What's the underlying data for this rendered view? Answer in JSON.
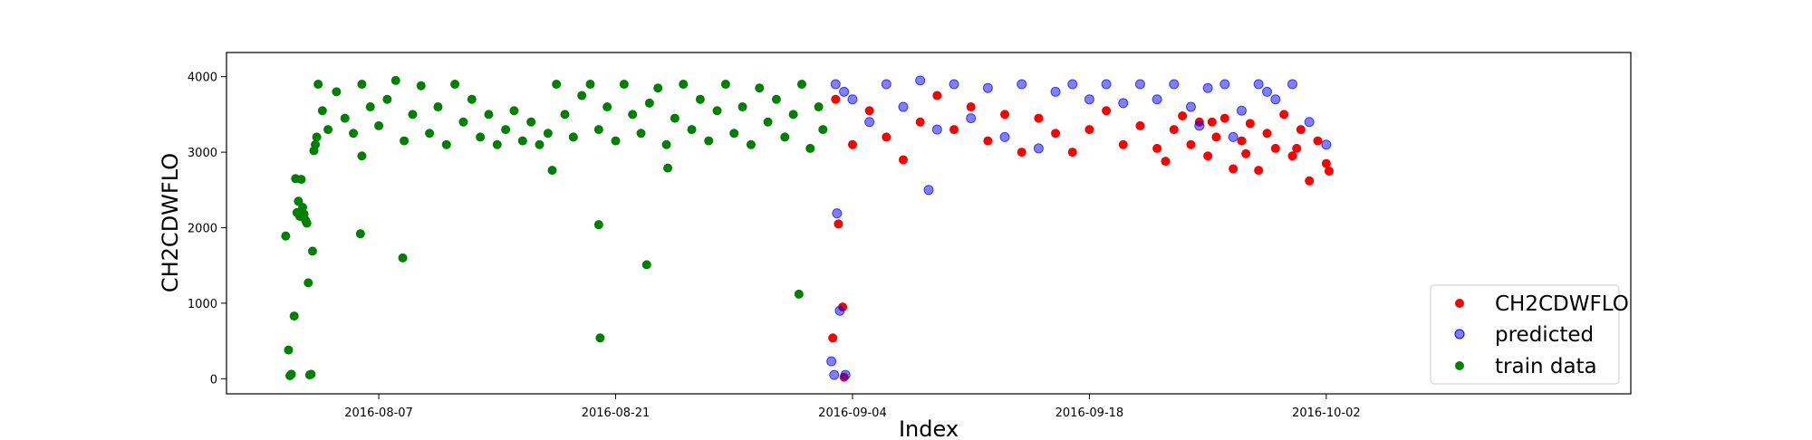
{
  "chart_data": {
    "type": "scatter",
    "title": "",
    "xlabel": "Index",
    "ylabel": "CH2CDWFLO",
    "xlim": [
      "2016-07-29",
      "2016-10-20"
    ],
    "ylim": [
      -200,
      4320
    ],
    "x_ticks": [
      "2016-08-07",
      "2016-08-21",
      "2016-09-04",
      "2016-09-18",
      "2016-10-02"
    ],
    "y_ticks": [
      0,
      1000,
      2000,
      3000,
      4000
    ],
    "legend": {
      "location": "lower-right",
      "entries": [
        "CH2CDWFLO",
        "predicted",
        "train data"
      ]
    },
    "colors": {
      "CH2CDWFLO": "#ff0000",
      "predicted": "#0000ff",
      "train data": "#008000"
    },
    "series": [
      {
        "name": "train data",
        "points": [
          [
            "2016-08-01 12:00",
            1890
          ],
          [
            "2016-08-01 16:00",
            380
          ],
          [
            "2016-08-01 18:00",
            40
          ],
          [
            "2016-08-01 20:00",
            60
          ],
          [
            "2016-08-02 00:00",
            830
          ],
          [
            "2016-08-02 02:00",
            2650
          ],
          [
            "2016-08-02 04:00",
            2200
          ],
          [
            "2016-08-02 06:00",
            2350
          ],
          [
            "2016-08-02 08:00",
            2150
          ],
          [
            "2016-08-02 10:00",
            2640
          ],
          [
            "2016-08-02 12:00",
            2270
          ],
          [
            "2016-08-02 14:00",
            2180
          ],
          [
            "2016-08-02 16:00",
            2100
          ],
          [
            "2016-08-02 18:00",
            2060
          ],
          [
            "2016-08-02 20:00",
            1270
          ],
          [
            "2016-08-02 22:00",
            50
          ],
          [
            "2016-08-03 00:00",
            60
          ],
          [
            "2016-08-03 02:00",
            1690
          ],
          [
            "2016-08-03 04:00",
            3020
          ],
          [
            "2016-08-03 06:00",
            3100
          ],
          [
            "2016-08-03 08:00",
            3200
          ],
          [
            "2016-08-03 10:00",
            3900
          ],
          [
            "2016-08-05 22:00",
            1920
          ],
          [
            "2016-08-06 00:00",
            2950
          ],
          [
            "2016-08-08 10:00",
            1600
          ],
          [
            "2016-08-20 00:00",
            2040
          ],
          [
            "2016-08-20 02:00",
            540
          ],
          [
            "2016-08-22 20:00",
            1510
          ],
          [
            "2016-08-24 02:00",
            2790
          ],
          [
            "2016-08-31 20:00",
            1120
          ],
          [
            "2016-08-17 06:00",
            2760
          ],
          [
            "2016-08-03 16:00",
            3550
          ],
          [
            "2016-08-04 00:00",
            3300
          ],
          [
            "2016-08-04 12:00",
            3800
          ],
          [
            "2016-08-05 00:00",
            3450
          ],
          [
            "2016-08-05 12:00",
            3250
          ],
          [
            "2016-08-06 00:00",
            3900
          ],
          [
            "2016-08-06 12:00",
            3600
          ],
          [
            "2016-08-07 00:00",
            3350
          ],
          [
            "2016-08-07 12:00",
            3700
          ],
          [
            "2016-08-08 00:00",
            3950
          ],
          [
            "2016-08-08 12:00",
            3150
          ],
          [
            "2016-08-09 00:00",
            3500
          ],
          [
            "2016-08-09 12:00",
            3880
          ],
          [
            "2016-08-10 00:00",
            3250
          ],
          [
            "2016-08-10 12:00",
            3600
          ],
          [
            "2016-08-11 00:00",
            3100
          ],
          [
            "2016-08-11 12:00",
            3900
          ],
          [
            "2016-08-12 00:00",
            3400
          ],
          [
            "2016-08-12 12:00",
            3700
          ],
          [
            "2016-08-13 00:00",
            3200
          ],
          [
            "2016-08-13 12:00",
            3500
          ],
          [
            "2016-08-14 00:00",
            3100
          ],
          [
            "2016-08-14 12:00",
            3300
          ],
          [
            "2016-08-15 00:00",
            3550
          ],
          [
            "2016-08-15 12:00",
            3150
          ],
          [
            "2016-08-16 00:00",
            3400
          ],
          [
            "2016-08-16 12:00",
            3100
          ],
          [
            "2016-08-17 00:00",
            3250
          ],
          [
            "2016-08-17 12:00",
            3900
          ],
          [
            "2016-08-18 00:00",
            3500
          ],
          [
            "2016-08-18 12:00",
            3200
          ],
          [
            "2016-08-19 00:00",
            3750
          ],
          [
            "2016-08-19 12:00",
            3900
          ],
          [
            "2016-08-20 00:00",
            3300
          ],
          [
            "2016-08-20 12:00",
            3600
          ],
          [
            "2016-08-21 00:00",
            3150
          ],
          [
            "2016-08-21 12:00",
            3900
          ],
          [
            "2016-08-22 00:00",
            3500
          ],
          [
            "2016-08-22 12:00",
            3250
          ],
          [
            "2016-08-23 00:00",
            3650
          ],
          [
            "2016-08-23 12:00",
            3850
          ],
          [
            "2016-08-24 00:00",
            3100
          ],
          [
            "2016-08-24 12:00",
            3450
          ],
          [
            "2016-08-25 00:00",
            3900
          ],
          [
            "2016-08-25 12:00",
            3300
          ],
          [
            "2016-08-26 00:00",
            3700
          ],
          [
            "2016-08-26 12:00",
            3150
          ],
          [
            "2016-08-27 00:00",
            3550
          ],
          [
            "2016-08-27 12:00",
            3900
          ],
          [
            "2016-08-28 00:00",
            3250
          ],
          [
            "2016-08-28 12:00",
            3600
          ],
          [
            "2016-08-29 00:00",
            3100
          ],
          [
            "2016-08-29 12:00",
            3850
          ],
          [
            "2016-08-30 00:00",
            3400
          ],
          [
            "2016-08-30 12:00",
            3700
          ],
          [
            "2016-08-31 00:00",
            3200
          ],
          [
            "2016-08-31 12:00",
            3500
          ],
          [
            "2016-09-01 00:00",
            3900
          ],
          [
            "2016-09-01 12:00",
            3050
          ],
          [
            "2016-09-02 00:00",
            3600
          ],
          [
            "2016-09-02 06:00",
            3300
          ]
        ]
      },
      {
        "name": "CH2CDWFLO",
        "points": [
          [
            "2016-09-02 20:00",
            540
          ],
          [
            "2016-09-03 04:00",
            2050
          ],
          [
            "2016-09-03 10:00",
            950
          ],
          [
            "2016-09-03 12:00",
            20
          ],
          [
            "2016-09-03 00:00",
            3700
          ],
          [
            "2016-09-04 00:00",
            3100
          ],
          [
            "2016-09-05 00:00",
            3550
          ],
          [
            "2016-09-06 00:00",
            3200
          ],
          [
            "2016-09-07 00:00",
            2900
          ],
          [
            "2016-09-08 00:00",
            3400
          ],
          [
            "2016-09-09 00:00",
            3750
          ],
          [
            "2016-09-10 00:00",
            3300
          ],
          [
            "2016-09-11 00:00",
            3600
          ],
          [
            "2016-09-12 00:00",
            3150
          ],
          [
            "2016-09-13 00:00",
            3500
          ],
          [
            "2016-09-14 00:00",
            3000
          ],
          [
            "2016-09-15 00:00",
            3450
          ],
          [
            "2016-09-16 00:00",
            3250
          ],
          [
            "2016-09-17 00:00",
            3000
          ],
          [
            "2016-09-18 00:00",
            3300
          ],
          [
            "2016-09-19 00:00",
            3550
          ],
          [
            "2016-09-20 00:00",
            3100
          ],
          [
            "2016-09-21 00:00",
            3350
          ],
          [
            "2016-09-22 00:00",
            3050
          ],
          [
            "2016-09-22 12:00",
            2880
          ],
          [
            "2016-09-23 00:00",
            3300
          ],
          [
            "2016-09-23 12:00",
            3480
          ],
          [
            "2016-09-24 00:00",
            3100
          ],
          [
            "2016-09-24 12:00",
            3400
          ],
          [
            "2016-09-25 00:00",
            2950
          ],
          [
            "2016-09-25 12:00",
            3200
          ],
          [
            "2016-09-26 00:00",
            3450
          ],
          [
            "2016-09-26 12:00",
            2780
          ],
          [
            "2016-09-27 00:00",
            3150
          ],
          [
            "2016-09-27 12:00",
            3380
          ],
          [
            "2016-09-28 00:00",
            2760
          ],
          [
            "2016-09-28 12:00",
            3250
          ],
          [
            "2016-09-29 00:00",
            3050
          ],
          [
            "2016-09-29 12:00",
            3500
          ],
          [
            "2016-09-30 00:00",
            2950
          ],
          [
            "2016-09-30 12:00",
            3300
          ],
          [
            "2016-10-01 00:00",
            2620
          ],
          [
            "2016-10-01 12:00",
            3150
          ],
          [
            "2016-10-02 00:00",
            2850
          ],
          [
            "2016-10-02 04:00",
            2750
          ],
          [
            "2016-09-25 06:00",
            3400
          ],
          [
            "2016-09-27 06:00",
            2980
          ],
          [
            "2016-09-30 06:00",
            3050
          ]
        ]
      },
      {
        "name": "predicted",
        "points": [
          [
            "2016-09-02 18:00",
            230
          ],
          [
            "2016-09-03 02:00",
            2190
          ],
          [
            "2016-09-03 06:00",
            900
          ],
          [
            "2016-09-03 14:00",
            50
          ],
          [
            "2016-09-02 22:00",
            50
          ],
          [
            "2016-09-03 00:00",
            3900
          ],
          [
            "2016-09-03 12:00",
            3800
          ],
          [
            "2016-09-04 00:00",
            3700
          ],
          [
            "2016-09-05 00:00",
            3400
          ],
          [
            "2016-09-06 00:00",
            3900
          ],
          [
            "2016-09-07 00:00",
            3600
          ],
          [
            "2016-09-08 00:00",
            3950
          ],
          [
            "2016-09-09 00:00",
            3300
          ],
          [
            "2016-09-10 00:00",
            3900
          ],
          [
            "2016-09-11 00:00",
            3450
          ],
          [
            "2016-09-12 00:00",
            3850
          ],
          [
            "2016-09-13 00:00",
            3200
          ],
          [
            "2016-09-14 00:00",
            3900
          ],
          [
            "2016-09-15 00:00",
            3050
          ],
          [
            "2016-09-16 00:00",
            3800
          ],
          [
            "2016-09-17 00:00",
            3900
          ],
          [
            "2016-09-18 00:00",
            3700
          ],
          [
            "2016-09-19 00:00",
            3900
          ],
          [
            "2016-09-20 00:00",
            3650
          ],
          [
            "2016-09-21 00:00",
            3900
          ],
          [
            "2016-09-22 00:00",
            3700
          ],
          [
            "2016-09-23 00:00",
            3900
          ],
          [
            "2016-09-24 00:00",
            3600
          ],
          [
            "2016-09-25 00:00",
            3850
          ],
          [
            "2016-09-26 00:00",
            3900
          ],
          [
            "2016-09-27 00:00",
            3550
          ],
          [
            "2016-09-28 00:00",
            3900
          ],
          [
            "2016-09-29 00:00",
            3700
          ],
          [
            "2016-09-30 00:00",
            3900
          ],
          [
            "2016-10-01 00:00",
            3400
          ],
          [
            "2016-10-02 00:00",
            3100
          ],
          [
            "2016-09-08 12:00",
            2500
          ],
          [
            "2016-09-28 12:00",
            3800
          ],
          [
            "2016-09-24 12:00",
            3350
          ],
          [
            "2016-09-26 12:00",
            3200
          ]
        ]
      }
    ]
  }
}
